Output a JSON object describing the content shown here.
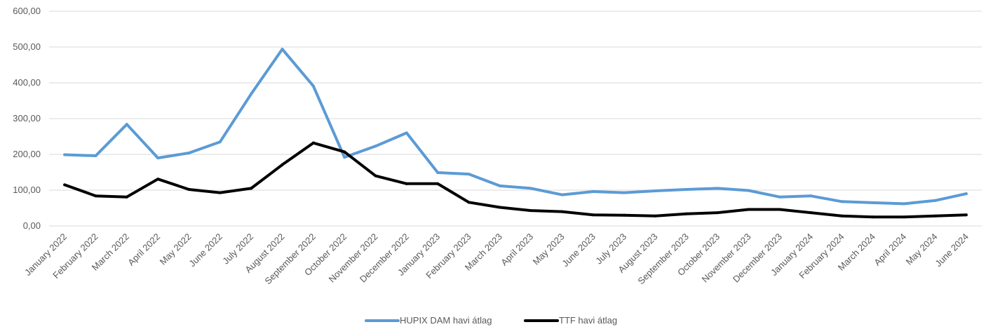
{
  "chart_data": {
    "type": "line",
    "title": "",
    "xlabel": "",
    "ylabel": "",
    "ylim": [
      0,
      600
    ],
    "y_ticks": [
      0,
      100,
      200,
      300,
      400,
      500,
      600
    ],
    "y_tick_labels": [
      "0,00",
      "100,00",
      "200,00",
      "300,00",
      "400,00",
      "500,00",
      "600,00"
    ],
    "grid": "horizontal",
    "legend_position": "bottom",
    "categories": [
      "January 2022",
      "February 2022",
      "March 2022",
      "April 2022",
      "May 2022",
      "June 2022",
      "July 2022",
      "August 2022",
      "September 2022",
      "October 2022",
      "November 2022",
      "December 2022",
      "January 2023",
      "February 2023",
      "March 2023",
      "April 2023",
      "May 2023",
      "June 2023",
      "July 2023",
      "August 2023",
      "September 2023",
      "October 2023",
      "November 2023",
      "December 2023",
      "January 2024",
      "February 2024",
      "March 2024",
      "April 2024",
      "May 2024",
      "June 2024"
    ],
    "series": [
      {
        "name": "HUPIX DAM havi átlag",
        "color": "#5B9BD5",
        "values": [
          199,
          196,
          284,
          190,
          204,
          235,
          369,
          494,
          391,
          192,
          223,
          260,
          149,
          145,
          112,
          105,
          87,
          96,
          93,
          98,
          102,
          105,
          99,
          81,
          84,
          68,
          65,
          62,
          71,
          90
        ]
      },
      {
        "name": "TTF  havi átlag",
        "color": "#000000",
        "values": [
          115,
          84,
          81,
          131,
          102,
          93,
          105,
          171,
          232,
          207,
          140,
          118,
          118,
          66,
          52,
          43,
          40,
          31,
          30,
          28,
          34,
          37,
          46,
          46,
          37,
          28,
          25,
          25,
          28,
          31
        ]
      }
    ]
  }
}
